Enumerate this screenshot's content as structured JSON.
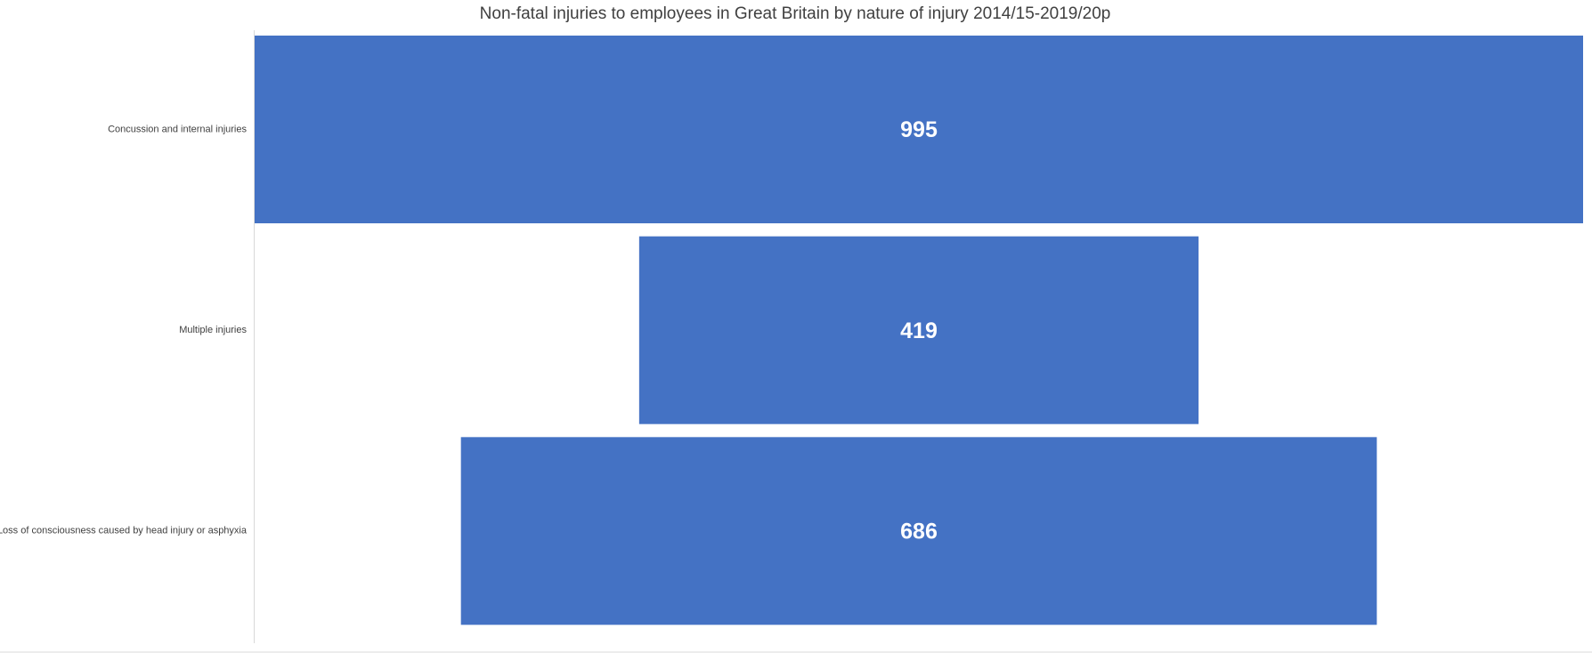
{
  "chart_data": {
    "type": "funnel",
    "title": "Non-fatal injuries to employees in Great Britain by nature of injury 2014/15-2019/20p",
    "categories": [
      "Concussion and internal injuries",
      "Multiple injuries",
      "Loss of consciousness caused by head injury or asphyxia"
    ],
    "values": [
      995,
      419,
      686
    ],
    "color": "#4472c4"
  }
}
